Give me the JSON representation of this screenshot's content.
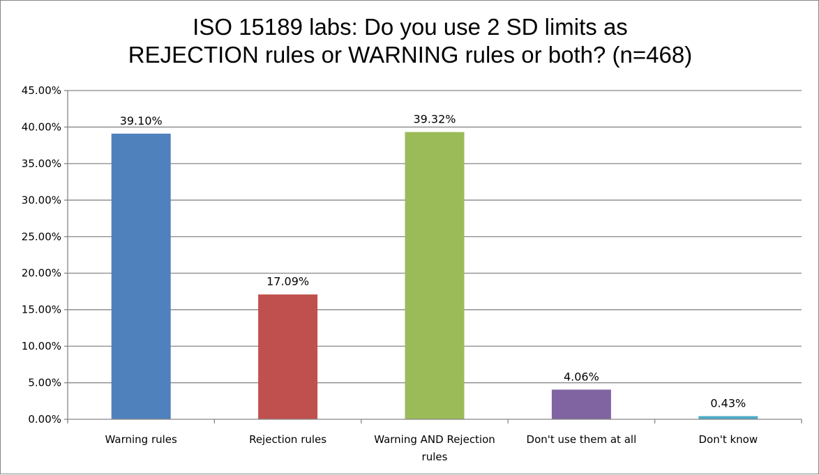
{
  "chart_data": {
    "type": "bar",
    "title_lines": [
      "ISO 15189 labs: Do you use 2 SD limits as",
      "REJECTION rules or WARNING rules or both? (n=468)"
    ],
    "categories": [
      "Warning rules",
      "Rejection rules",
      "Warning AND Rejection rules",
      "Don't use them at all",
      "Don't know"
    ],
    "category_lines": [
      [
        "Warning rules"
      ],
      [
        "Rejection rules"
      ],
      [
        "Warning AND Rejection",
        "rules"
      ],
      [
        "Don't use them at all"
      ],
      [
        "Don't know"
      ]
    ],
    "values": [
      39.1,
      17.09,
      39.32,
      4.06,
      0.43
    ],
    "data_labels": [
      "39.10%",
      "17.09%",
      "39.32%",
      "4.06%",
      "0.43%"
    ],
    "colors": [
      "#4F81BD",
      "#C0504D",
      "#9BBB59",
      "#8064A2",
      "#4BACC6"
    ],
    "ylim": [
      0,
      45
    ],
    "yticks": [
      "0.00%",
      "5.00%",
      "10.00%",
      "15.00%",
      "20.00%",
      "25.00%",
      "30.00%",
      "35.00%",
      "40.00%",
      "45.00%"
    ],
    "xlabel": "",
    "ylabel": "",
    "grid": true,
    "legend": "none"
  }
}
